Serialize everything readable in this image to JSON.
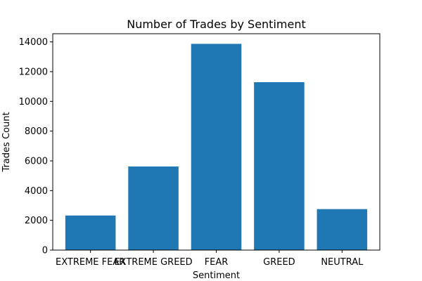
{
  "chart_data": {
    "type": "bar",
    "title": "Number of Trades by Sentiment",
    "xlabel": "Sentiment",
    "ylabel": "Trades Count",
    "categories": [
      "EXTREME FEAR",
      "EXTREME GREED",
      "FEAR",
      "GREED",
      "NEUTRAL"
    ],
    "values": [
      2326,
      5621,
      13869,
      11292,
      2756
    ],
    "ylim": [
      0,
      14550
    ],
    "yticks": [
      0,
      2000,
      4000,
      6000,
      8000,
      10000,
      12000,
      14000
    ],
    "grid": false,
    "bar_color": "#1f77b4"
  }
}
